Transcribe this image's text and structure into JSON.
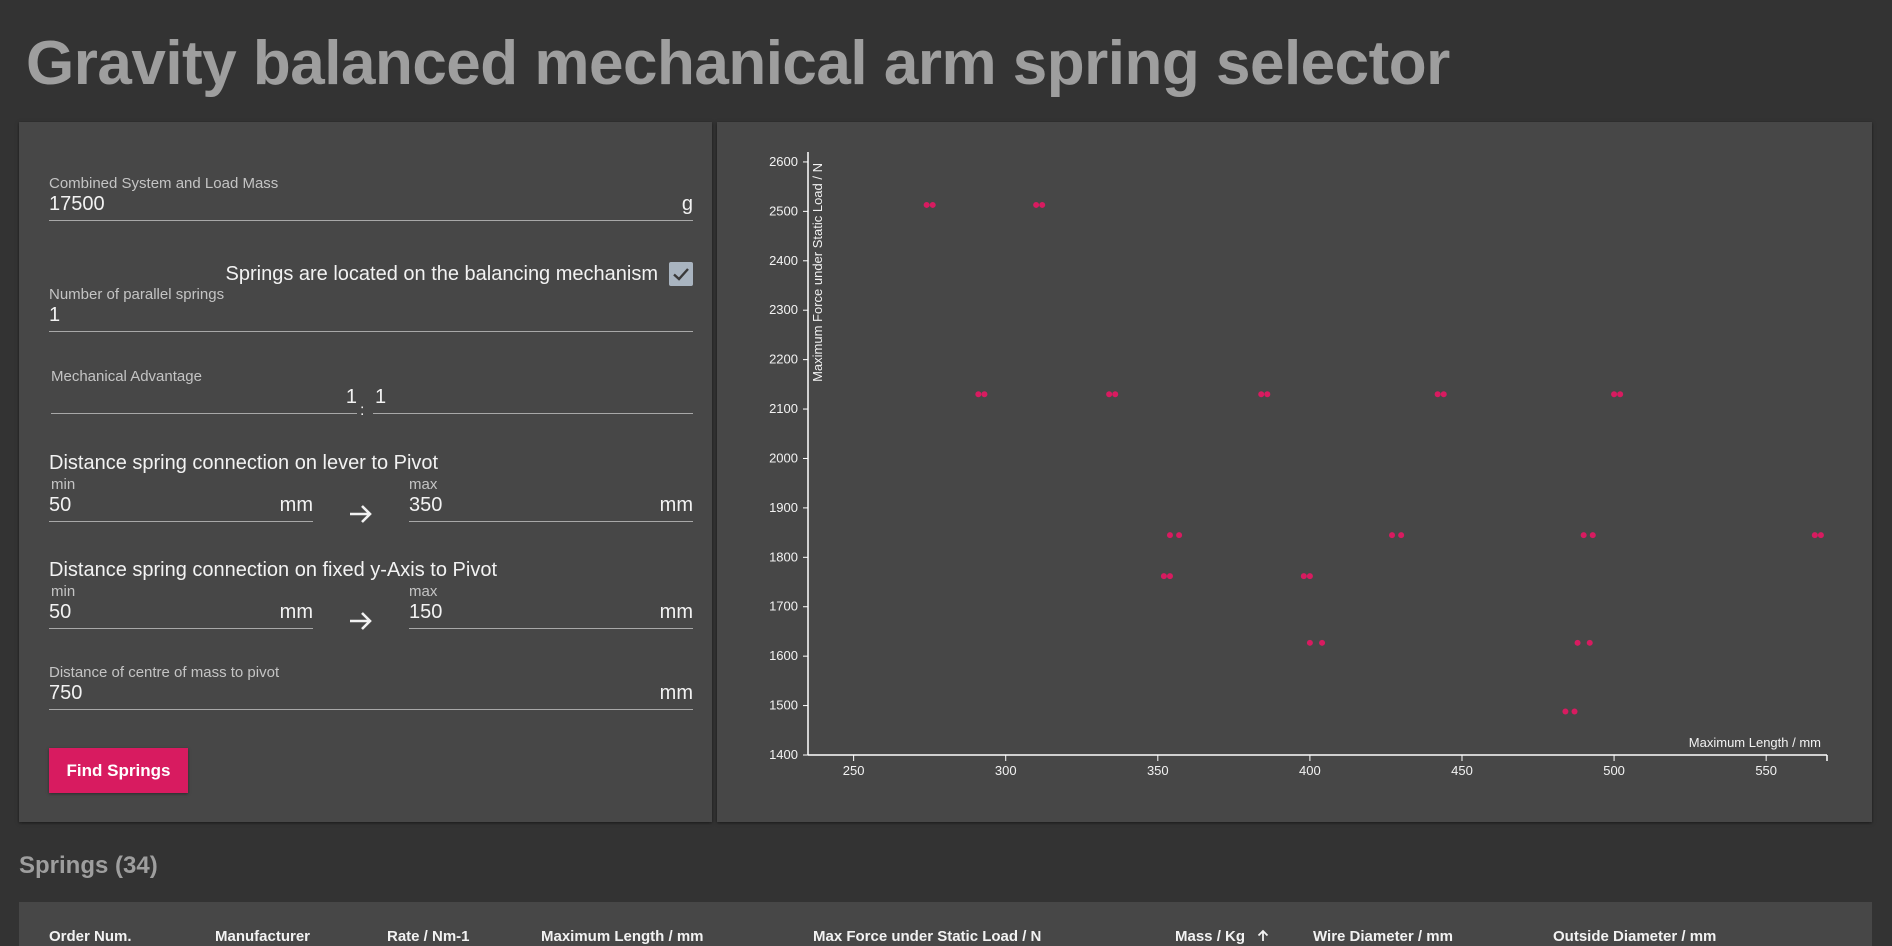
{
  "page": {
    "title": "Gravity balanced mechanical arm spring selector"
  },
  "form": {
    "mass": {
      "label": "Combined System and Load Mass",
      "value": "17500",
      "unit": "g"
    },
    "springs_on_mechanism": {
      "label": "Springs are located on the balancing mechanism",
      "checked": true
    },
    "parallel_springs": {
      "label": "Number of parallel springs",
      "value": "1"
    },
    "mechanical_advantage": {
      "label": "Mechanical Advantage",
      "left": "1",
      "separator": ":",
      "right": "1"
    },
    "lever_distance": {
      "title": "Distance spring connection on lever to Pivot",
      "min_label": "min",
      "min_value": "50",
      "min_unit": "mm",
      "max_label": "max",
      "max_value": "350",
      "max_unit": "mm"
    },
    "yaxis_distance": {
      "title": "Distance spring connection on fixed y-Axis to Pivot",
      "min_label": "min",
      "min_value": "50",
      "min_unit": "mm",
      "max_label": "max",
      "max_value": "150",
      "max_unit": "mm"
    },
    "centre_mass": {
      "label": "Distance of centre of mass to pivot",
      "value": "750",
      "unit": "mm"
    },
    "find_button": "Find Springs"
  },
  "springs": {
    "heading": "Springs (34)",
    "columns": [
      "Order Num.",
      "Manufacturer",
      "Rate / Nm-1",
      "Maximum Length / mm",
      "Max Force under Static Load / N",
      "Mass / Kg",
      "Wire Diameter / mm",
      "Outside Diameter / mm"
    ],
    "sorted_column": "Mass / Kg",
    "sort_icon": "arrow-up-icon"
  },
  "chart_data": {
    "type": "scatter",
    "title": "",
    "xlabel": "Maximum Length / mm",
    "ylabel": "Maximum Force under Static Load / N",
    "xlim": [
      235,
      570
    ],
    "ylim": [
      1400,
      2610
    ],
    "xticks": [
      250,
      300,
      350,
      400,
      450,
      500,
      550
    ],
    "yticks": [
      1400,
      1500,
      1600,
      1700,
      1800,
      1900,
      2000,
      2100,
      2200,
      2300,
      2400,
      2500,
      2600
    ],
    "grid": false,
    "marker_color": "#d81b60",
    "points": [
      {
        "x": 274,
        "y": 2513
      },
      {
        "x": 276,
        "y": 2513
      },
      {
        "x": 310,
        "y": 2513
      },
      {
        "x": 312,
        "y": 2513
      },
      {
        "x": 291,
        "y": 2130
      },
      {
        "x": 293,
        "y": 2130
      },
      {
        "x": 334,
        "y": 2130
      },
      {
        "x": 336,
        "y": 2130
      },
      {
        "x": 384,
        "y": 2130
      },
      {
        "x": 386,
        "y": 2130
      },
      {
        "x": 442,
        "y": 2130
      },
      {
        "x": 444,
        "y": 2130
      },
      {
        "x": 500,
        "y": 2130
      },
      {
        "x": 502,
        "y": 2130
      },
      {
        "x": 354,
        "y": 1845
      },
      {
        "x": 357,
        "y": 1845
      },
      {
        "x": 427,
        "y": 1845
      },
      {
        "x": 430,
        "y": 1845
      },
      {
        "x": 490,
        "y": 1845
      },
      {
        "x": 493,
        "y": 1845
      },
      {
        "x": 566,
        "y": 1845
      },
      {
        "x": 568,
        "y": 1845
      },
      {
        "x": 352,
        "y": 1762
      },
      {
        "x": 354,
        "y": 1762
      },
      {
        "x": 398,
        "y": 1762
      },
      {
        "x": 400,
        "y": 1762
      },
      {
        "x": 400,
        "y": 1627
      },
      {
        "x": 404,
        "y": 1627
      },
      {
        "x": 488,
        "y": 1627
      },
      {
        "x": 492,
        "y": 1627
      },
      {
        "x": 484,
        "y": 1488
      },
      {
        "x": 487,
        "y": 1488
      }
    ]
  }
}
